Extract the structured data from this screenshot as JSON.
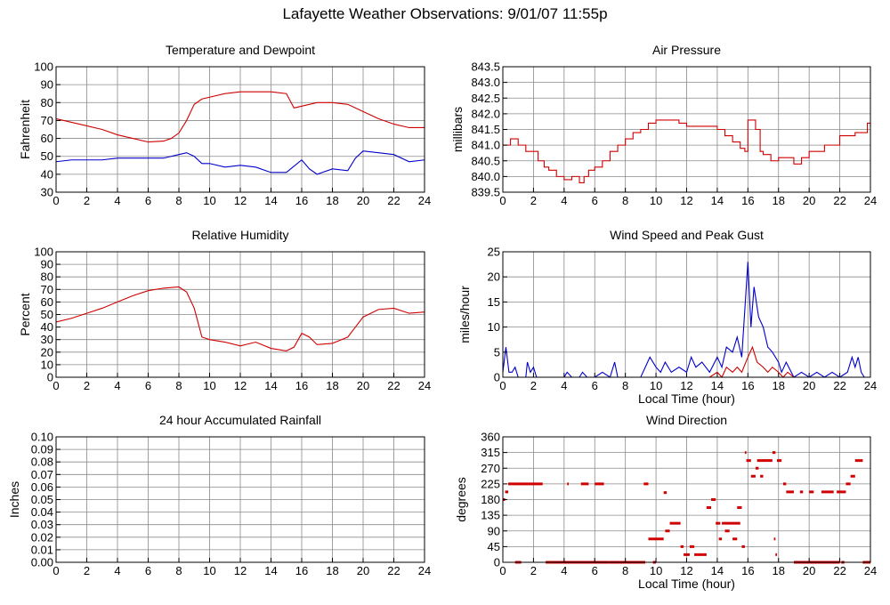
{
  "page": {
    "title": "Lafayette Weather Observations: 9/01/07 11:55p"
  },
  "chart_data": [
    {
      "id": "temp",
      "type": "line",
      "title": "Temperature and Dewpoint",
      "xlabel": "",
      "ylabel": "Fahrenheit",
      "xlim": [
        0,
        24
      ],
      "ylim": [
        30,
        100
      ],
      "xticks": [
        0,
        2,
        4,
        6,
        8,
        10,
        12,
        14,
        16,
        18,
        20,
        22,
        24
      ],
      "yticks": [
        30,
        40,
        50,
        60,
        70,
        80,
        90,
        100
      ],
      "ytick_labels": [
        "30",
        "40",
        "50",
        "60",
        "70",
        "80",
        "90",
        "100"
      ],
      "grid": true,
      "series": [
        {
          "color": "#d00000",
          "x": [
            0,
            1,
            2,
            3,
            4,
            5,
            6,
            7,
            7.5,
            8,
            8.5,
            9,
            9.5,
            10,
            11,
            12,
            13,
            14,
            15,
            15.5,
            16,
            17,
            18,
            19,
            20,
            21,
            22,
            23,
            24
          ],
          "y": [
            71,
            69,
            67,
            65,
            62,
            60,
            58,
            58.5,
            60,
            63,
            70,
            79,
            82,
            83,
            85,
            86,
            86,
            86,
            85,
            77,
            78,
            80,
            80,
            79,
            75,
            71,
            68,
            66,
            66
          ]
        },
        {
          "color": "#0000cc",
          "x": [
            0,
            1,
            2,
            3,
            4,
            5,
            6,
            7,
            8,
            8.5,
            9,
            9.5,
            10,
            11,
            12,
            13,
            14,
            15,
            16,
            16.5,
            17,
            18,
            19,
            19.5,
            20,
            21,
            22,
            23,
            24
          ],
          "y": [
            47,
            48,
            48,
            48,
            49,
            49,
            49,
            49,
            51,
            52,
            50,
            46,
            46,
            44,
            45,
            44,
            41,
            41,
            48,
            43,
            40,
            43,
            42,
            49,
            53,
            52,
            51,
            47,
            48
          ]
        }
      ]
    },
    {
      "id": "pressure",
      "type": "line",
      "title": "Air Pressure",
      "xlabel": "",
      "ylabel": "millibars",
      "xlim": [
        0,
        24
      ],
      "ylim": [
        839.5,
        843.5
      ],
      "xticks": [
        0,
        2,
        4,
        6,
        8,
        10,
        12,
        14,
        16,
        18,
        20,
        22,
        24
      ],
      "yticks": [
        839.5,
        840.0,
        840.5,
        841.0,
        841.5,
        842.0,
        842.5,
        843.0,
        843.5
      ],
      "ytick_labels": [
        "839.5",
        "840.0",
        "840.5",
        "841.0",
        "841.5",
        "842.0",
        "842.5",
        "843.0",
        "843.5"
      ],
      "grid": true,
      "series": [
        {
          "color": "#d00000",
          "step": true,
          "x": [
            0,
            0.5,
            1,
            1.5,
            2,
            2.3,
            2.7,
            3,
            3.5,
            4,
            4.5,
            5,
            5.3,
            5.6,
            6,
            6.5,
            7,
            7.5,
            8,
            8.5,
            9,
            9.5,
            10,
            11,
            11.5,
            12,
            13,
            14,
            14.5,
            15,
            15.5,
            15.8,
            16,
            16.5,
            16.8,
            17,
            17.5,
            18,
            18.5,
            19,
            19.5,
            20,
            21,
            22,
            23,
            23.8,
            24
          ],
          "y": [
            841.0,
            841.2,
            841.0,
            840.8,
            840.8,
            840.5,
            840.3,
            840.2,
            840.0,
            839.9,
            840.0,
            839.8,
            840.0,
            840.2,
            840.3,
            840.5,
            840.8,
            841.0,
            841.2,
            841.4,
            841.5,
            841.7,
            841.8,
            841.8,
            841.7,
            841.6,
            841.6,
            841.5,
            841.3,
            841.1,
            840.9,
            840.8,
            841.8,
            841.5,
            840.8,
            840.7,
            840.5,
            840.6,
            840.6,
            840.4,
            840.6,
            840.8,
            841.0,
            841.3,
            841.4,
            841.7,
            841.6
          ]
        }
      ]
    },
    {
      "id": "humidity",
      "type": "line",
      "title": "Relative Humidity",
      "xlabel": "",
      "ylabel": "Percent",
      "xlim": [
        0,
        24
      ],
      "ylim": [
        0,
        100
      ],
      "xticks": [
        0,
        2,
        4,
        6,
        8,
        10,
        12,
        14,
        16,
        18,
        20,
        22,
        24
      ],
      "yticks": [
        0,
        10,
        20,
        30,
        40,
        50,
        60,
        70,
        80,
        90,
        100
      ],
      "ytick_labels": [
        "0",
        "10",
        "20",
        "30",
        "40",
        "50",
        "60",
        "70",
        "80",
        "90",
        "100"
      ],
      "grid": true,
      "series": [
        {
          "color": "#d00000",
          "x": [
            0,
            1,
            2,
            3,
            4,
            5,
            6,
            7,
            8,
            8.5,
            9,
            9.5,
            10,
            11,
            12,
            13,
            14,
            15,
            15.5,
            16,
            16.5,
            17,
            18,
            19,
            19.5,
            20,
            21,
            22,
            23,
            24
          ],
          "y": [
            44,
            47,
            51,
            55,
            60,
            65,
            69,
            71,
            72,
            68,
            55,
            32,
            30,
            28,
            25,
            28,
            23,
            21,
            24,
            35,
            32,
            26,
            27,
            32,
            40,
            48,
            54,
            55,
            51,
            52
          ]
        }
      ]
    },
    {
      "id": "wind",
      "type": "line",
      "title": "Wind Speed and Peak Gust",
      "xlabel": "Local Time (hour)",
      "ylabel": "miles/hour",
      "xlim": [
        0,
        24
      ],
      "ylim": [
        0,
        25
      ],
      "xticks": [
        0,
        2,
        4,
        6,
        8,
        10,
        12,
        14,
        16,
        18,
        20,
        22,
        24
      ],
      "yticks": [
        0,
        5,
        10,
        15,
        20,
        25
      ],
      "ytick_labels": [
        "0",
        "5",
        "10",
        "15",
        "20",
        "25"
      ],
      "grid": true,
      "series": [
        {
          "color": "#0000cc",
          "x": [
            0,
            0.2,
            0.4,
            0.6,
            0.8,
            1,
            1.5,
            1.6,
            1.8,
            2,
            2.2,
            2.5,
            3,
            3.5,
            4,
            4.2,
            4.5,
            5,
            5.2,
            5.5,
            6,
            6.5,
            7,
            7.3,
            7.5,
            8,
            8.5,
            9,
            9.3,
            9.6,
            10,
            10.3,
            10.6,
            11,
            11.5,
            12,
            12.3,
            12.6,
            13,
            13.5,
            14,
            14.3,
            14.6,
            15,
            15.3,
            15.6,
            16,
            16.2,
            16.4,
            16.7,
            17,
            17.3,
            17.6,
            18,
            18.2,
            18.5,
            19,
            19.5,
            20,
            20.5,
            21,
            21.5,
            22,
            22.5,
            22.8,
            23,
            23.2,
            23.4,
            23.6,
            24
          ],
          "y": [
            1,
            6,
            1,
            1,
            2,
            0,
            0,
            3,
            1,
            2,
            0,
            0,
            0,
            0,
            0,
            1,
            0,
            0,
            1,
            0,
            0,
            1,
            0,
            3,
            0,
            0,
            0,
            0,
            2,
            4,
            2,
            1,
            3,
            1,
            2,
            1,
            4,
            2,
            3,
            1,
            4,
            2,
            6,
            5,
            8,
            4,
            23,
            10,
            18,
            12,
            10,
            6,
            5,
            3,
            1,
            3,
            0,
            1,
            0,
            1,
            0,
            1,
            0,
            1,
            4,
            2,
            4,
            1,
            0,
            0
          ]
        },
        {
          "color": "#d00000",
          "x": [
            0,
            2,
            4,
            6,
            8,
            9,
            10,
            11,
            12,
            13,
            13.5,
            14,
            14.3,
            14.6,
            15,
            15.3,
            15.6,
            16,
            16.3,
            16.6,
            17,
            17.3,
            17.6,
            18,
            18.3,
            18.6,
            19,
            20,
            22,
            24
          ],
          "y": [
            0,
            0,
            0,
            0,
            0,
            0,
            0,
            0,
            0,
            0,
            0,
            1,
            0,
            2,
            1,
            2,
            1,
            4,
            6,
            3,
            2,
            1,
            2,
            1,
            0,
            1,
            0,
            0,
            0,
            0
          ]
        }
      ]
    },
    {
      "id": "rain",
      "type": "line",
      "title": "24 hour Accumulated Rainfall",
      "xlabel": "",
      "ylabel": "Inches",
      "xlim": [
        0,
        24
      ],
      "ylim": [
        0,
        0.1
      ],
      "xticks": [
        0,
        2,
        4,
        6,
        8,
        10,
        12,
        14,
        16,
        18,
        20,
        22,
        24
      ],
      "yticks": [
        0,
        0.01,
        0.02,
        0.03,
        0.04,
        0.05,
        0.06,
        0.07,
        0.08,
        0.09,
        0.1
      ],
      "ytick_labels": [
        "0.00",
        "0.01",
        "0.02",
        "0.03",
        "0.04",
        "0.05",
        "0.06",
        "0.07",
        "0.08",
        "0.09",
        "0.10"
      ],
      "grid": true,
      "series": [
        {
          "color": "#d00000",
          "x": [
            0,
            24
          ],
          "y": [
            0,
            0
          ]
        }
      ]
    },
    {
      "id": "direction",
      "type": "scatter",
      "title": "Wind Direction",
      "xlabel": "Local Time (hour)",
      "ylabel": "degrees",
      "xlim": [
        0,
        24
      ],
      "ylim": [
        0,
        360
      ],
      "xticks": [
        0,
        2,
        4,
        6,
        8,
        10,
        12,
        14,
        16,
        18,
        20,
        22,
        24
      ],
      "yticks": [
        0,
        45,
        90,
        135,
        180,
        225,
        270,
        315,
        360
      ],
      "ytick_labels": [
        "0",
        "45",
        "90",
        "135",
        "180",
        "225",
        "270",
        "315",
        "360"
      ],
      "grid": true,
      "series": [
        {
          "color": "#d00000",
          "runs": [
            [
              0,
              0.15,
              180
            ],
            [
              0.15,
              0.35,
              202
            ],
            [
              0.35,
              2.6,
              225
            ],
            [
              0.8,
              1.2,
              0
            ],
            [
              2.8,
              6.9,
              0
            ],
            [
              4.2,
              4.3,
              225
            ],
            [
              5.1,
              5.6,
              225
            ],
            [
              6.0,
              6.6,
              225
            ],
            [
              6.9,
              9.3,
              0
            ],
            [
              9.2,
              9.5,
              225
            ],
            [
              9.5,
              10.5,
              67
            ],
            [
              9.8,
              10.0,
              0
            ],
            [
              10.5,
              10.7,
              200
            ],
            [
              10.6,
              10.9,
              90
            ],
            [
              10.9,
              11.6,
              112
            ],
            [
              11.6,
              11.8,
              45
            ],
            [
              11.8,
              12.2,
              22
            ],
            [
              12.2,
              12.5,
              45
            ],
            [
              12.5,
              12.7,
              22
            ],
            [
              12.7,
              13.3,
              22
            ],
            [
              13.3,
              13.6,
              157
            ],
            [
              13.6,
              13.9,
              180
            ],
            [
              13.9,
              14.2,
              112
            ],
            [
              14.1,
              14.3,
              67
            ],
            [
              14.3,
              15.5,
              112
            ],
            [
              14.5,
              14.8,
              90
            ],
            [
              15.0,
              15.3,
              67
            ],
            [
              15.3,
              15.6,
              157
            ],
            [
              15.6,
              15.8,
              45
            ],
            [
              15.8,
              15.9,
              315
            ],
            [
              15.9,
              16.2,
              292
            ],
            [
              16.2,
              16.5,
              247
            ],
            [
              16.5,
              16.7,
              270
            ],
            [
              16.6,
              17.6,
              292
            ],
            [
              16.8,
              17.0,
              247
            ],
            [
              17.6,
              17.8,
              315
            ],
            [
              17.7,
              17.8,
              67
            ],
            [
              17.8,
              17.9,
              22
            ],
            [
              17.9,
              18.2,
              292
            ],
            [
              18.3,
              18.5,
              225
            ],
            [
              18.5,
              19.0,
              202
            ],
            [
              19.0,
              22.0,
              0
            ],
            [
              19.4,
              19.6,
              202
            ],
            [
              20.0,
              20.3,
              202
            ],
            [
              20.8,
              21.6,
              202
            ],
            [
              21.8,
              22.4,
              202
            ],
            [
              22.4,
              22.7,
              225
            ],
            [
              22.7,
              23.0,
              247
            ],
            [
              23.0,
              23.5,
              292
            ],
            [
              23.5,
              24,
              0
            ],
            [
              22.1,
              22.3,
              0
            ]
          ]
        }
      ]
    }
  ]
}
